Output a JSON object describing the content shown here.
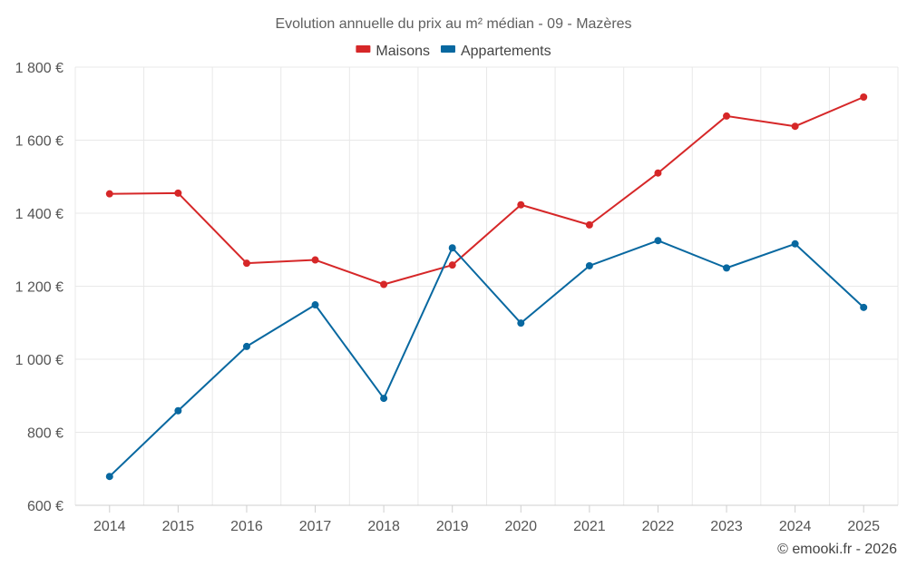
{
  "chart_data": {
    "type": "line",
    "title": "Evolution annuelle du prix au m² médian - 09 - Mazères",
    "categories": [
      "2014",
      "2015",
      "2016",
      "2017",
      "2018",
      "2019",
      "2020",
      "2021",
      "2022",
      "2023",
      "2024",
      "2025"
    ],
    "series": [
      {
        "name": "Maisons",
        "color": "#d62728",
        "values": [
          1453,
          1455,
          1263,
          1272,
          1205,
          1258,
          1423,
          1368,
          1510,
          1666,
          1638,
          1718
        ]
      },
      {
        "name": "Appartements",
        "color": "#0868a0",
        "values": [
          679,
          859,
          1035,
          1149,
          893,
          1305,
          1099,
          1256,
          1325,
          1250,
          1316,
          1142
        ]
      }
    ],
    "ylim": [
      600,
      1800
    ],
    "yticks": [
      600,
      800,
      1000,
      1200,
      1400,
      1600,
      1800
    ],
    "ytick_labels": [
      "600 €",
      "800 €",
      "1 000 €",
      "1 200 €",
      "1 400 €",
      "1 600 €",
      "1 800 €"
    ],
    "xlabel": "",
    "ylabel": "",
    "grid": true,
    "legend_position": "top-center"
  },
  "credit": "© emooki.fr - 2026"
}
